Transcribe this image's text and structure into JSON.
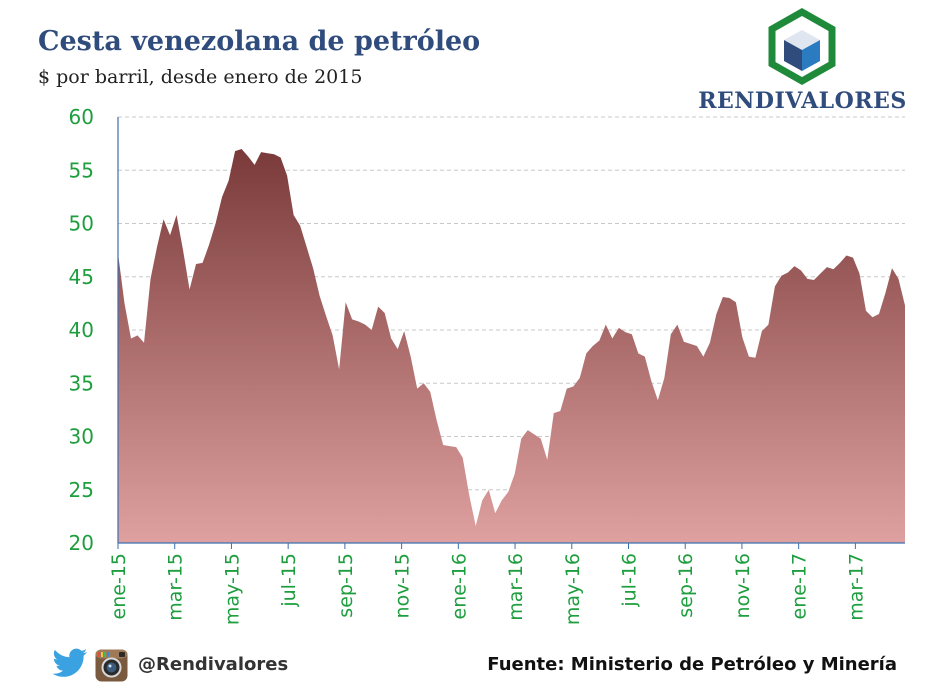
{
  "title": "Cesta venezolana de petróleo",
  "subtitle": "$ por barril, desde enero de 2015",
  "logo": {
    "name": "RENDIVALORES",
    "icon": "hexagon-cube-icon",
    "colors": {
      "hex": "#1f8a3a",
      "cube_left": "#2f4c7d",
      "cube_right": "#2a7bc0",
      "cube_top": "#dfe6f0"
    }
  },
  "footer": {
    "handle": "@Rendivalores",
    "source": "Fuente: Ministerio de Petróleo y Minería",
    "icons": [
      "twitter-icon",
      "instagram-icon"
    ]
  },
  "colors": {
    "axis_text": "#1e9e3e",
    "area_top": "#7a3a3a",
    "area_bottom": "#dfa0a0",
    "grid": "#c8c8c8"
  },
  "chart_data": {
    "type": "area",
    "title": "Cesta venezolana de petróleo",
    "ylabel": "$ por barril",
    "ylim": [
      20,
      60
    ],
    "yticks": [
      "20",
      "25",
      "30",
      "35",
      "40",
      "45",
      "50",
      "55",
      "60"
    ],
    "ytick_values": [
      20,
      25,
      30,
      35,
      40,
      45,
      50,
      55,
      60
    ],
    "xticks": [
      "ene-15",
      "mar-15",
      "may-15",
      "jul-15",
      "sep-15",
      "nov-15",
      "ene-16",
      "mar-16",
      "may-16",
      "jul-16",
      "sep-16",
      "nov-16",
      "ene-17",
      "mar-17"
    ],
    "xtick_weeks": [
      0,
      8,
      16,
      24,
      32,
      40,
      48,
      56,
      64,
      72,
      80,
      88,
      96,
      104
    ],
    "x_max_week": 111,
    "grid": "horizontal-dashed",
    "series": [
      {
        "name": "Cesta venezolana",
        "values": [
          47.2,
          42.5,
          39.2,
          39.5,
          38.8,
          44.8,
          47.8,
          50.4,
          48.9,
          50.8,
          47.5,
          43.8,
          46.2,
          46.3,
          48.0,
          50.0,
          52.5,
          54.0,
          56.8,
          57.0,
          56.3,
          55.5,
          56.7,
          56.6,
          56.5,
          56.2,
          54.5,
          50.8,
          49.8,
          47.8,
          45.8,
          43.2,
          41.3,
          39.5,
          36.3,
          42.6,
          41.0,
          40.8,
          40.5,
          40.0,
          42.2,
          41.6,
          39.2,
          38.2,
          39.9,
          37.5,
          34.5,
          35.0,
          34.2,
          31.5,
          29.2,
          29.1,
          29.0,
          28.0,
          24.5,
          21.6,
          24.0,
          25.0,
          22.8,
          24.0,
          24.8,
          26.5,
          29.8,
          30.6,
          30.2,
          29.8,
          27.8,
          32.2,
          32.4,
          34.5,
          34.7,
          35.5,
          37.8,
          38.5,
          39.0,
          40.5,
          39.2,
          40.2,
          39.8,
          39.6,
          37.8,
          37.5,
          35.2,
          33.4,
          35.5,
          39.6,
          40.5,
          38.9,
          38.7,
          38.5,
          37.5,
          38.8,
          41.5,
          43.1,
          43.0,
          42.6,
          39.3,
          37.5,
          37.4,
          39.9,
          40.5,
          44.1,
          45.1,
          45.4,
          46.0,
          45.6,
          44.8,
          44.7,
          45.3,
          45.9,
          45.7,
          46.3,
          47.0,
          46.8,
          45.3,
          41.8,
          41.2,
          41.5,
          43.5,
          45.8,
          44.8,
          42.3
        ]
      }
    ]
  }
}
